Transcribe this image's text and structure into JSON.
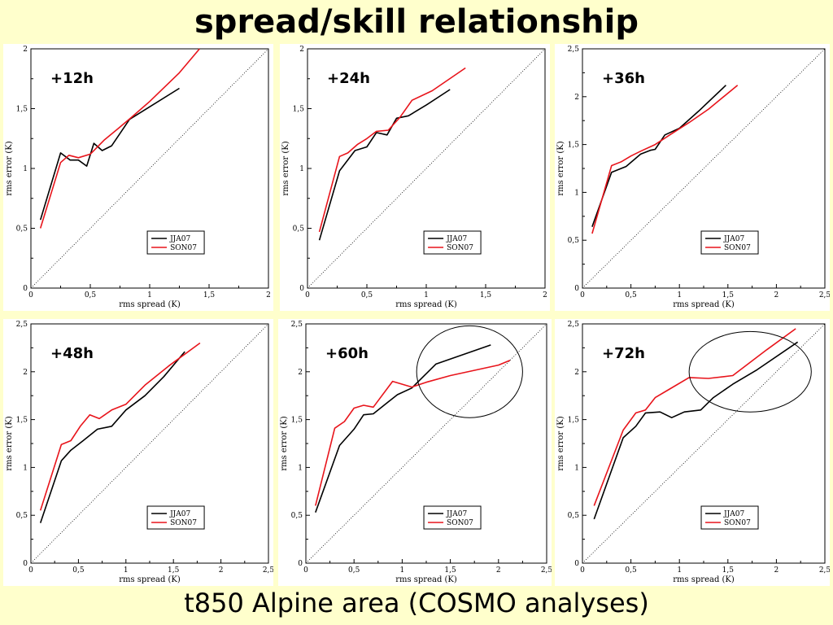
{
  "title": "spread/skill relationship",
  "footer": "t850  Alpine area (COSMO analyses)",
  "colors": {
    "JJA07": "#000000",
    "SON07": "#e8141b"
  },
  "chart_data": [
    {
      "type": "line",
      "label": "+12h",
      "xlabel": "rms spread (K)",
      "ylabel": "rms error (K)",
      "xlim": [
        0,
        2
      ],
      "ylim": [
        0,
        2
      ],
      "xticks": [
        "0",
        "0,5",
        "1",
        "1,5",
        "2"
      ],
      "yticks": [
        "0",
        "0,5",
        "1",
        "1,5",
        "2"
      ],
      "legend": [
        "JJA07",
        "SON07"
      ],
      "series": [
        {
          "name": "JJA07",
          "points": [
            [
              0.08,
              0.57
            ],
            [
              0.25,
              1.13
            ],
            [
              0.33,
              1.07
            ],
            [
              0.4,
              1.07
            ],
            [
              0.47,
              1.02
            ],
            [
              0.53,
              1.21
            ],
            [
              0.6,
              1.15
            ],
            [
              0.68,
              1.19
            ],
            [
              0.83,
              1.41
            ],
            [
              1.25,
              1.67
            ]
          ]
        },
        {
          "name": "SON07",
          "points": [
            [
              0.08,
              0.5
            ],
            [
              0.25,
              1.05
            ],
            [
              0.32,
              1.11
            ],
            [
              0.4,
              1.09
            ],
            [
              0.5,
              1.12
            ],
            [
              0.62,
              1.24
            ],
            [
              0.73,
              1.33
            ],
            [
              0.85,
              1.43
            ],
            [
              1.0,
              1.56
            ],
            [
              1.25,
              1.8
            ],
            [
              1.42,
              2.0
            ]
          ]
        }
      ]
    },
    {
      "type": "line",
      "label": "+24h",
      "xlabel": "rms spread (K)",
      "ylabel": "rms error (K)",
      "xlim": [
        0,
        2
      ],
      "ylim": [
        0,
        2
      ],
      "xticks": [
        "0",
        "0,5",
        "1",
        "1,5",
        "2"
      ],
      "yticks": [
        "0",
        "0,5",
        "1",
        "1,5",
        "2"
      ],
      "legend": [
        "JJA07",
        "SON07"
      ],
      "series": [
        {
          "name": "JJA07",
          "points": [
            [
              0.1,
              0.4
            ],
            [
              0.27,
              0.98
            ],
            [
              0.4,
              1.15
            ],
            [
              0.5,
              1.18
            ],
            [
              0.58,
              1.3
            ],
            [
              0.67,
              1.28
            ],
            [
              0.75,
              1.42
            ],
            [
              0.85,
              1.44
            ],
            [
              1.0,
              1.53
            ],
            [
              1.2,
              1.66
            ]
          ]
        },
        {
          "name": "SON07",
          "points": [
            [
              0.1,
              0.47
            ],
            [
              0.27,
              1.1
            ],
            [
              0.34,
              1.13
            ],
            [
              0.42,
              1.2
            ],
            [
              0.5,
              1.25
            ],
            [
              0.58,
              1.31
            ],
            [
              0.68,
              1.32
            ],
            [
              0.78,
              1.43
            ],
            [
              0.88,
              1.57
            ],
            [
              1.05,
              1.65
            ],
            [
              1.33,
              1.84
            ]
          ]
        }
      ]
    },
    {
      "type": "line",
      "label": "+36h",
      "xlabel": "rms spread (K)",
      "ylabel": "rms error (K)",
      "xlim": [
        0,
        2.5
      ],
      "ylim": [
        0,
        2.5
      ],
      "xticks": [
        "0",
        "0,5",
        "1",
        "1,5",
        "2",
        "2,5"
      ],
      "yticks": [
        "0",
        "0,5",
        "1",
        "1,5",
        "2",
        "2,5"
      ],
      "legend": [
        "JJA07",
        "SON07"
      ],
      "series": [
        {
          "name": "JJA07",
          "points": [
            [
              0.1,
              0.64
            ],
            [
              0.3,
              1.21
            ],
            [
              0.45,
              1.27
            ],
            [
              0.6,
              1.4
            ],
            [
              0.7,
              1.44
            ],
            [
              0.75,
              1.45
            ],
            [
              0.85,
              1.6
            ],
            [
              1.0,
              1.67
            ],
            [
              1.2,
              1.85
            ],
            [
              1.48,
              2.12
            ]
          ]
        },
        {
          "name": "SON07",
          "points": [
            [
              0.1,
              0.57
            ],
            [
              0.3,
              1.28
            ],
            [
              0.4,
              1.32
            ],
            [
              0.5,
              1.38
            ],
            [
              0.6,
              1.43
            ],
            [
              0.75,
              1.5
            ],
            [
              0.9,
              1.6
            ],
            [
              1.1,
              1.73
            ],
            [
              1.3,
              1.87
            ],
            [
              1.6,
              2.12
            ]
          ]
        }
      ]
    },
    {
      "type": "line",
      "label": "+48h",
      "xlabel": "rms spread (K)",
      "ylabel": "rms error (K)",
      "xlim": [
        0,
        2.5
      ],
      "ylim": [
        0,
        2.5
      ],
      "xticks": [
        "0",
        "0,5",
        "1",
        "1,5",
        "2",
        "2,5"
      ],
      "yticks": [
        "0",
        "0,5",
        "1",
        "1,5",
        "2",
        "2,5"
      ],
      "legend": [
        "JJA07",
        "SON07"
      ],
      "series": [
        {
          "name": "JJA07",
          "points": [
            [
              0.1,
              0.42
            ],
            [
              0.32,
              1.07
            ],
            [
              0.42,
              1.18
            ],
            [
              0.55,
              1.28
            ],
            [
              0.7,
              1.4
            ],
            [
              0.85,
              1.43
            ],
            [
              1.0,
              1.6
            ],
            [
              1.2,
              1.75
            ],
            [
              1.4,
              1.95
            ],
            [
              1.62,
              2.21
            ]
          ]
        },
        {
          "name": "SON07",
          "points": [
            [
              0.1,
              0.55
            ],
            [
              0.32,
              1.24
            ],
            [
              0.42,
              1.28
            ],
            [
              0.52,
              1.43
            ],
            [
              0.62,
              1.55
            ],
            [
              0.72,
              1.51
            ],
            [
              0.85,
              1.6
            ],
            [
              1.0,
              1.66
            ],
            [
              1.2,
              1.86
            ],
            [
              1.45,
              2.06
            ],
            [
              1.78,
              2.3
            ]
          ]
        }
      ]
    },
    {
      "type": "line",
      "label": "+60h",
      "xlabel": "rms spread (K)",
      "ylabel": "rms error (K)",
      "xlim": [
        0,
        2.5
      ],
      "ylim": [
        0,
        2.5
      ],
      "xticks": [
        "0",
        "0,5",
        "1",
        "1,5",
        "2",
        "2,5"
      ],
      "yticks": [
        "0",
        "0,5",
        "1",
        "1,5",
        "2",
        "2,5"
      ],
      "legend": [
        "JJA07",
        "SON07"
      ],
      "highlight": {
        "cx": 1.7,
        "cy": 2.0,
        "rx": 0.55,
        "ry": 0.48
      },
      "series": [
        {
          "name": "JJA07",
          "points": [
            [
              0.1,
              0.53
            ],
            [
              0.35,
              1.23
            ],
            [
              0.5,
              1.4
            ],
            [
              0.6,
              1.55
            ],
            [
              0.7,
              1.56
            ],
            [
              0.85,
              1.68
            ],
            [
              0.95,
              1.76
            ],
            [
              1.1,
              1.83
            ],
            [
              1.35,
              2.08
            ],
            [
              1.92,
              2.28
            ]
          ]
        },
        {
          "name": "SON07",
          "points": [
            [
              0.1,
              0.6
            ],
            [
              0.3,
              1.41
            ],
            [
              0.4,
              1.48
            ],
            [
              0.5,
              1.62
            ],
            [
              0.6,
              1.65
            ],
            [
              0.7,
              1.63
            ],
            [
              0.9,
              1.9
            ],
            [
              1.1,
              1.84
            ],
            [
              1.25,
              1.89
            ],
            [
              1.5,
              1.96
            ],
            [
              2.0,
              2.07
            ],
            [
              2.12,
              2.12
            ]
          ]
        }
      ]
    },
    {
      "type": "line",
      "label": "+72h",
      "xlabel": "rms spread (K)",
      "ylabel": "rms error (K)",
      "xlim": [
        0,
        2.5
      ],
      "ylim": [
        0,
        2.5
      ],
      "xticks": [
        "0",
        "0,5",
        "1",
        "1,5",
        "2",
        "2,5"
      ],
      "yticks": [
        "0",
        "0,5",
        "1",
        "1,5",
        "2",
        "2,5"
      ],
      "legend": [
        "JJA07",
        "SON07"
      ],
      "highlight": {
        "cx": 1.73,
        "cy": 2.0,
        "rx": 0.63,
        "ry": 0.42
      },
      "series": [
        {
          "name": "JJA07",
          "points": [
            [
              0.12,
              0.46
            ],
            [
              0.42,
              1.31
            ],
            [
              0.55,
              1.43
            ],
            [
              0.65,
              1.57
            ],
            [
              0.8,
              1.58
            ],
            [
              0.92,
              1.52
            ],
            [
              1.05,
              1.58
            ],
            [
              1.22,
              1.6
            ],
            [
              1.35,
              1.73
            ],
            [
              1.55,
              1.87
            ],
            [
              1.8,
              2.02
            ],
            [
              2.22,
              2.31
            ]
          ]
        },
        {
          "name": "SON07",
          "points": [
            [
              0.12,
              0.6
            ],
            [
              0.42,
              1.39
            ],
            [
              0.55,
              1.57
            ],
            [
              0.65,
              1.6
            ],
            [
              0.75,
              1.73
            ],
            [
              0.9,
              1.82
            ],
            [
              1.1,
              1.94
            ],
            [
              1.3,
              1.93
            ],
            [
              1.55,
              1.96
            ],
            [
              1.9,
              2.23
            ],
            [
              2.2,
              2.45
            ]
          ]
        }
      ]
    }
  ]
}
